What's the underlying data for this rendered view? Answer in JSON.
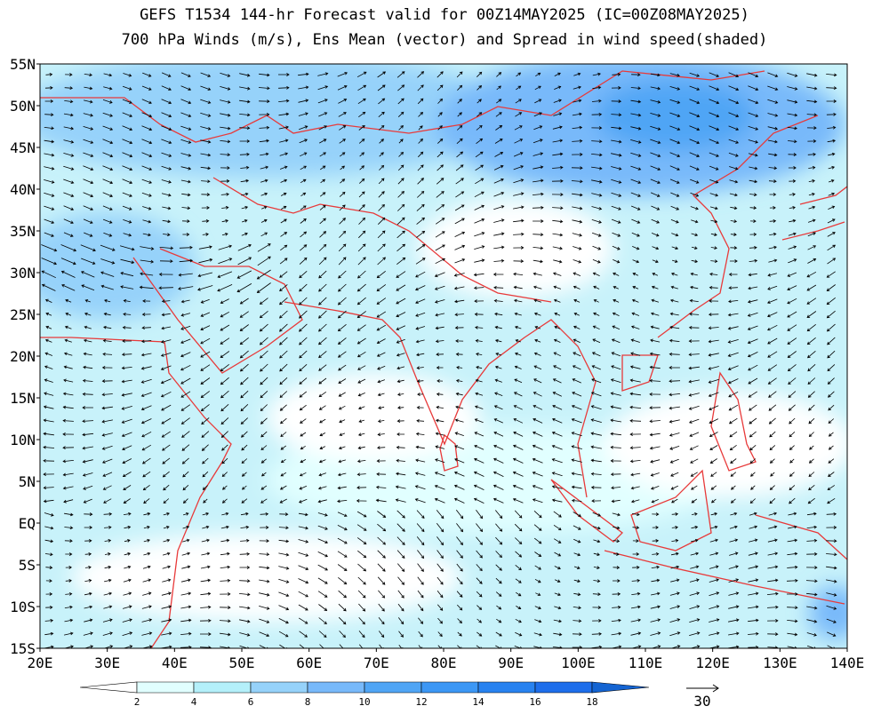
{
  "title": {
    "line1": "GEFS T1534 144-hr Forecast valid for 00Z14MAY2025 (IC=00Z08MAY2025)",
    "line2": "700 hPa Winds (m/s), Ens Mean (vector) and Spread in wind speed(shaded)"
  },
  "lat_labels": [
    "55N",
    "50N",
    "45N",
    "40N",
    "35N",
    "30N",
    "25N",
    "20N",
    "15N",
    "10N",
    "5N",
    "EQ",
    "5S",
    "10S",
    "15S"
  ],
  "lon_labels": [
    "20E",
    "30E",
    "40E",
    "50E",
    "60E",
    "70E",
    "80E",
    "90E",
    "100E",
    "110E",
    "120E",
    "130E",
    "140E"
  ],
  "colorbar": {
    "labels": [
      "2",
      "4",
      "6",
      "8",
      "10",
      "12",
      "14",
      "16",
      "18"
    ],
    "colors": [
      "#ffffff",
      "#e1ffff",
      "#b4f0fa",
      "#96d2fa",
      "#78b9fa",
      "#50a5f5",
      "#3c97f5",
      "#2882f0",
      "#1e6eeb",
      "#1464d2"
    ]
  },
  "reference_vector": {
    "label": "30"
  }
}
